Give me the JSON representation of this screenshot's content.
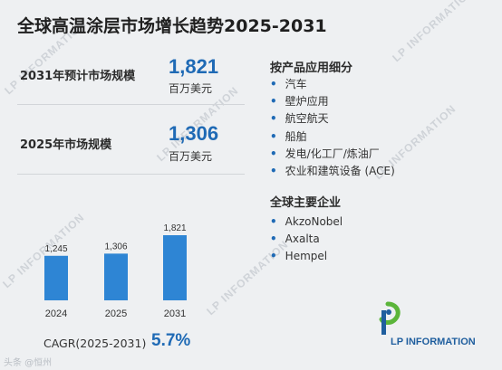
{
  "title": "全球高温涂层市场增长趋势2025-2031",
  "stats": [
    {
      "label": "2031年预计市场规模",
      "value": "1,821",
      "unit": "百万美元"
    },
    {
      "label": "2025年市场规模",
      "value": "1,306",
      "unit": "百万美元"
    }
  ],
  "segments": {
    "heading": "按产品应用细分",
    "items": [
      "汽车",
      "壁炉应用",
      "航空航天",
      "船舶",
      "发电/化工厂/炼油厂",
      "农业和建筑设备 (ACE)"
    ]
  },
  "companies": {
    "heading": "全球主要企业",
    "items": [
      "AkzoNobel",
      "Axalta",
      "Hempel"
    ]
  },
  "chart_data": {
    "type": "bar",
    "categories": [
      "2024",
      "2025",
      "2031"
    ],
    "values": [
      1245,
      1306,
      1821
    ],
    "value_labels": [
      "1,245",
      "1,306",
      "1,821"
    ],
    "color": "#2e85d4",
    "ylim": [
      0,
      1821
    ],
    "grid": false
  },
  "cagr": {
    "label": "CAGR(2025-2031)",
    "value": "5.7%"
  },
  "logo": {
    "text": "LP INFORMATION"
  },
  "watermark": {
    "text": "LP INFORMATION",
    "footer": "头条 @恒州"
  },
  "colors": {
    "accent": "#1f6ab5",
    "bar": "#2e85d4",
    "logo_green": "#5bb53a"
  }
}
